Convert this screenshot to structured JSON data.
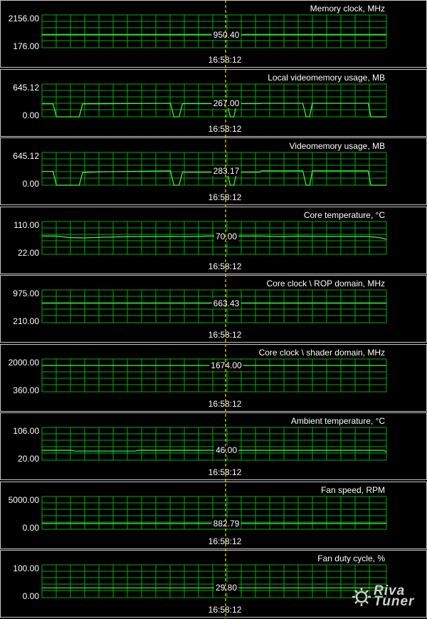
{
  "timestamp": "16:58:12",
  "colors": {
    "grid": "#00b000",
    "series": "#3cff3c",
    "cursor": "#e8e000",
    "background": "#000000",
    "border": "#c8c8c8"
  },
  "panels": [
    {
      "title": "Memory clock, MHz",
      "ymax": "2156.00",
      "ymin": "176.00",
      "current": "950.40",
      "ymax_n": 2156,
      "ymin_n": 176,
      "series": [
        [
          0,
          950.4
        ],
        [
          100,
          950.4
        ]
      ]
    },
    {
      "title": "Local videomemory usage, MB",
      "ymax": "645.12",
      "ymin": "0.00",
      "current": "267.00",
      "ymax_n": 645.12,
      "ymin_n": 0,
      "series": [
        [
          0,
          255
        ],
        [
          3.2,
          255
        ],
        [
          4.2,
          0
        ],
        [
          10.8,
          0
        ],
        [
          11.8,
          255
        ],
        [
          37.3,
          267
        ],
        [
          38.3,
          0
        ],
        [
          39.8,
          0
        ],
        [
          40.8,
          260
        ],
        [
          53.7,
          260
        ],
        [
          54.7,
          0
        ],
        [
          55.7,
          0
        ],
        [
          56.5,
          260
        ],
        [
          63.3,
          260
        ],
        [
          63.7,
          267
        ],
        [
          75.7,
          267
        ],
        [
          76.7,
          0
        ],
        [
          77.7,
          0
        ],
        [
          78.5,
          267
        ],
        [
          94.7,
          267
        ],
        [
          95.5,
          0
        ],
        [
          100,
          0
        ]
      ]
    },
    {
      "title": "Videomemory usage, MB",
      "ymax": "645.12",
      "ymin": "0.00",
      "current": "283.17",
      "ymax_n": 645.12,
      "ymin_n": 0,
      "series": [
        [
          0,
          270
        ],
        [
          3.2,
          270
        ],
        [
          4.2,
          0
        ],
        [
          10.8,
          0
        ],
        [
          11.8,
          250
        ],
        [
          18,
          265
        ],
        [
          37.3,
          283.17
        ],
        [
          38.3,
          0
        ],
        [
          39.8,
          0
        ],
        [
          40.8,
          255
        ],
        [
          53.7,
          255
        ],
        [
          54.7,
          0
        ],
        [
          55.7,
          0
        ],
        [
          56.5,
          255
        ],
        [
          63.3,
          255
        ],
        [
          63.7,
          283.17
        ],
        [
          75.7,
          283.17
        ],
        [
          76.7,
          0
        ],
        [
          77.7,
          0
        ],
        [
          78.5,
          283.17
        ],
        [
          94.7,
          283.17
        ],
        [
          95.5,
          0
        ],
        [
          100,
          0
        ]
      ]
    },
    {
      "title": "Core temperature, °C",
      "ymax": "110.00",
      "ymin": "22.00",
      "current": "70.00",
      "ymax_n": 110,
      "ymin_n": 22,
      "series": [
        [
          0,
          71
        ],
        [
          4,
          71
        ],
        [
          8,
          67
        ],
        [
          12,
          66
        ],
        [
          18,
          68
        ],
        [
          24,
          69
        ],
        [
          38,
          70
        ],
        [
          42,
          69
        ],
        [
          48,
          71
        ],
        [
          56,
          71
        ],
        [
          64,
          71
        ],
        [
          70,
          69
        ],
        [
          74,
          71
        ],
        [
          80,
          70
        ],
        [
          88,
          70
        ],
        [
          94,
          70
        ],
        [
          98,
          67
        ],
        [
          100,
          62
        ]
      ]
    },
    {
      "title": "Core clock \\ ROP domain, MHz",
      "ymax": "975.00",
      "ymin": "210.00",
      "current": "663.43",
      "ymax_n": 975,
      "ymin_n": 210,
      "series": [
        [
          0,
          663.43
        ],
        [
          100,
          663.43
        ]
      ]
    },
    {
      "title": "Core clock \\ shader domain, MHz",
      "ymax": "2000.00",
      "ymin": "360.00",
      "current": "1674.00",
      "ymax_n": 2000,
      "ymin_n": 360,
      "series": [
        [
          0,
          1674
        ],
        [
          100,
          1674
        ]
      ]
    },
    {
      "title": "Ambient temperature, °C",
      "ymax": "106.00",
      "ymin": "20.00",
      "current": "46.00",
      "ymax_n": 106,
      "ymin_n": 20,
      "series": [
        [
          0,
          46
        ],
        [
          8.5,
          46
        ],
        [
          9.5,
          44
        ],
        [
          27,
          44
        ],
        [
          27.5,
          45
        ],
        [
          28,
          46
        ],
        [
          82,
          46
        ],
        [
          92,
          46
        ],
        [
          99,
          46
        ],
        [
          100,
          42
        ]
      ]
    },
    {
      "title": "Fan speed, RPM",
      "ymax": "5000.00",
      "ymin": "0.00",
      "current": "882.79",
      "ymax_n": 5000,
      "ymin_n": 0,
      "series": [
        [
          0,
          882.79
        ],
        [
          100,
          882.79
        ]
      ]
    },
    {
      "title": "Fan duty cycle, %",
      "ymax": "100.00",
      "ymin": "0.00",
      "current": "29.80",
      "ymax_n": 100,
      "ymin_n": 0,
      "series": [
        [
          0,
          29.8
        ],
        [
          100,
          29.8
        ]
      ]
    }
  ]
}
